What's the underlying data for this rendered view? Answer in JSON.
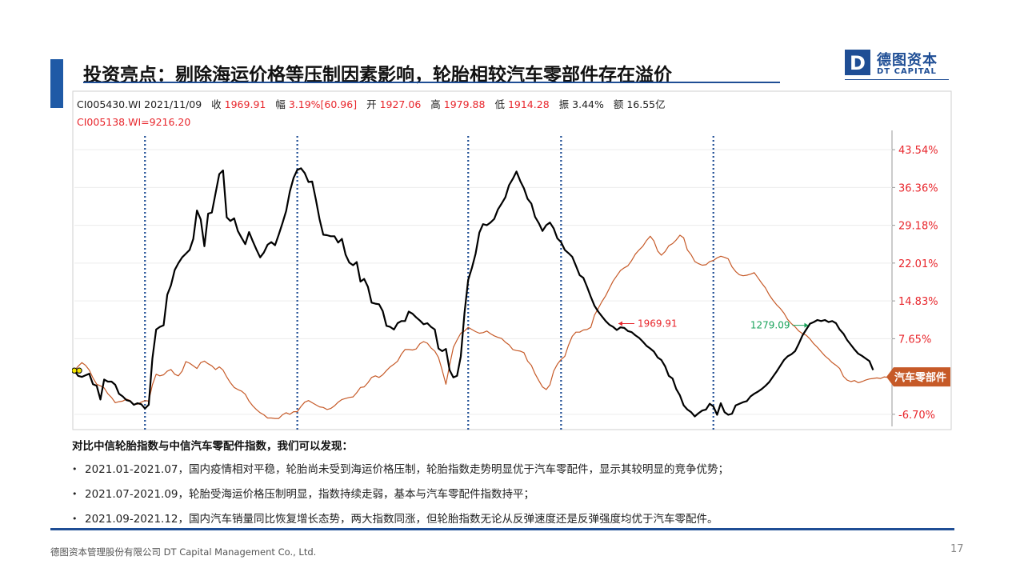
{
  "slide": {
    "title": "投资亮点：剔除海运价格等压制因素影响，轮胎相较汽车零部件存在溢价",
    "logo": {
      "cn": "德图资本",
      "en": "DT CAPITAL",
      "mark": "D"
    },
    "footer": {
      "company": "德图资本管理股份有限公司 DT Capital Management Co., Ltd.",
      "page": "17"
    },
    "accent_color": "#1f5aa6",
    "brand_color": "#1f4e95"
  },
  "infobar": {
    "code_date": "CI005430.WI 2021/11/09",
    "close_label": "收",
    "close_value": "1969.91",
    "change_label": "幅",
    "change_value": "3.19%[60.96]",
    "open_label": "开",
    "open_value": "1927.06",
    "high_label": "高",
    "high_value": "1979.88",
    "low_label": "低",
    "low_value": "1914.28",
    "amp_label": "振",
    "amp_value": "3.44%",
    "amount_label": "额",
    "amount_value": "16.55亿",
    "compare": "CI005138.WI=9216.20"
  },
  "findings": {
    "heading": "对比中信轮胎指数与中信汽车零配件指数，我们可以发现：",
    "bullets": [
      "2021.01-2021.07，国内疫情相对平稳，轮胎尚未受到海运价格压制，轮胎指数走势明显优于汽车零配件，显示其较明显的竞争优势；",
      "2021.07-2021.09，轮胎受海运价格压制明显，指数持续走弱，基本与汽车零配件指数持平；",
      "2021.09-2021.12，国内汽车销量同比恢复增长态势，两大指数同涨，但轮胎指数无论从反弹速度还是反弹强度均优于汽车零配件。"
    ]
  },
  "chart_data": {
    "type": "line",
    "y_axis": {
      "ticks": [
        "43.54%",
        "36.36%",
        "29.18%",
        "22.01%",
        "14.83%",
        "7.65%",
        "-6.70%"
      ],
      "tick_values": [
        43.54,
        36.36,
        29.18,
        22.01,
        14.83,
        7.65,
        -6.7
      ],
      "ylim": [
        -9.0,
        47.2
      ],
      "side": "right",
      "tick_color": "#e8262c"
    },
    "n_points": 220,
    "dotted_separator_indices": [
      19,
      60,
      106,
      131,
      172
    ],
    "annotations": {
      "high_label": "1969.91",
      "high_index": 146,
      "low_label": "1279.09",
      "low_index": 198,
      "legend_tag": "汽车零部件"
    },
    "series": [
      {
        "color": "#000000",
        "values": [
          1.6,
          0.6,
          0.4,
          0.7,
          1.0,
          -1.0,
          -1.3,
          -3.9,
          -0.1,
          -0.5,
          -0.5,
          -1.1,
          -2.8,
          -3.3,
          -4.0,
          -4.2,
          -4.9,
          -4.6,
          -4.8,
          -5.6,
          -4.9,
          3.9,
          9.4,
          9.9,
          10.2,
          16.0,
          17.8,
          20.7,
          22.0,
          23.1,
          23.8,
          24.5,
          26.6,
          32.0,
          30.3,
          25.2,
          31.4,
          31.6,
          35.3,
          38.9,
          39.6,
          30.7,
          30.0,
          30.5,
          28.1,
          26.8,
          25.6,
          27.9,
          26.2,
          24.6,
          23.1,
          24.0,
          25.5,
          26.0,
          25.4,
          27.4,
          29.6,
          31.9,
          35.6,
          38.2,
          39.7,
          40.0,
          39.1,
          37.4,
          37.5,
          34.1,
          30.3,
          27.4,
          27.3,
          27.1,
          27.1,
          25.9,
          26.6,
          23.6,
          22.1,
          21.6,
          22.2,
          18.5,
          19.0,
          17.5,
          14.5,
          14.3,
          14.2,
          12.9,
          10.1,
          9.9,
          9.4,
          10.6,
          11.0,
          11.0,
          12.8,
          12.4,
          11.7,
          11.1,
          10.4,
          10.6,
          9.9,
          9.4,
          5.8,
          5.3,
          5.7,
          1.7,
          0.3,
          0.6,
          4.3,
          12.5,
          18.8,
          21.1,
          23.8,
          27.8,
          29.4,
          29.2,
          29.7,
          30.4,
          32.2,
          33.3,
          34.5,
          36.8,
          38.0,
          39.4,
          37.6,
          36.2,
          34.2,
          33.3,
          30.8,
          29.6,
          28.1,
          29.2,
          29.7,
          28.6,
          26.7,
          26.0,
          24.5,
          23.9,
          23.2,
          21.5,
          19.7,
          19.2,
          17.5,
          15.6,
          13.9,
          12.8,
          11.9,
          11.0,
          10.3,
          9.9,
          9.3,
          9.8,
          9.7,
          9.1,
          8.9,
          8.3,
          7.8,
          7.1,
          6.3,
          5.8,
          5.2,
          4.1,
          3.6,
          2.4,
          0.6,
          0.1,
          -1.9,
          -3.1,
          -5.0,
          -5.8,
          -6.3,
          -7.1,
          -6.5,
          -6.0,
          -5.8,
          -4.7,
          -5.2,
          -6.8,
          -4.6,
          -6.3,
          -6.8,
          -6.6,
          -5.0,
          -4.7,
          -4.4,
          -4.2,
          -3.3,
          -2.8,
          -2.4,
          -1.9,
          -1.3,
          -0.6,
          0.4,
          1.4,
          2.5,
          3.6,
          4.3,
          4.7,
          5.3,
          6.7,
          8.3,
          9.4,
          10.5,
          10.8,
          11.2,
          11.0,
          11.2,
          10.8,
          11.0,
          10.6,
          9.4,
          8.6,
          7.4,
          6.5,
          5.6,
          4.8,
          4.4,
          3.9,
          3.4,
          1.7
        ]
      },
      {
        "color": "#c65a28",
        "values": [
          1.6,
          2.4,
          3.1,
          2.6,
          1.7,
          0.2,
          -1.0,
          -1.3,
          -1.7,
          -2.8,
          -3.5,
          -4.5,
          -4.3,
          -4.2,
          -3.8,
          -4.1,
          -4.8,
          -4.8,
          -4.4,
          -4.1,
          -4.2,
          -1.1,
          0.9,
          0.6,
          0.8,
          1.5,
          1.8,
          0.9,
          0.6,
          1.5,
          3.3,
          3.0,
          2.5,
          2.0,
          3.1,
          3.4,
          2.9,
          2.5,
          1.8,
          2.3,
          1.7,
          0.4,
          -0.7,
          -1.6,
          -2.0,
          -2.3,
          -2.9,
          -4.2,
          -5.1,
          -5.8,
          -6.4,
          -6.8,
          -7.4,
          -7.4,
          -7.5,
          -7.5,
          -6.8,
          -6.4,
          -6.7,
          -6.2,
          -6.2,
          -5.2,
          -4.4,
          -4.1,
          -4.5,
          -4.9,
          -5.3,
          -5.4,
          -5.8,
          -5.6,
          -5.1,
          -4.4,
          -3.9,
          -3.7,
          -3.5,
          -3.4,
          -2.6,
          -1.6,
          -1.5,
          -0.7,
          0.3,
          0.6,
          0.3,
          0.8,
          1.6,
          2.3,
          2.8,
          3.4,
          4.7,
          5.6,
          5.6,
          5.5,
          5.7,
          6.7,
          7.1,
          6.8,
          5.9,
          5.3,
          4.1,
          1.7,
          -1.0,
          2.6,
          6.0,
          7.4,
          8.7,
          9.1,
          9.8,
          9.4,
          9.0,
          8.7,
          8.8,
          9.1,
          8.6,
          8.2,
          7.9,
          7.7,
          7.0,
          6.5,
          5.6,
          5.4,
          5.3,
          5.0,
          3.4,
          2.6,
          1.0,
          -0.3,
          -1.5,
          -2.0,
          -1.1,
          1.5,
          2.8,
          3.7,
          4.3,
          6.4,
          8.1,
          8.9,
          8.9,
          9.3,
          9.4,
          9.8,
          12.1,
          13.4,
          14.7,
          15.8,
          17.2,
          18.6,
          19.6,
          20.6,
          21.1,
          21.5,
          22.5,
          23.7,
          24.5,
          25.2,
          26.3,
          27.1,
          26.2,
          24.3,
          23.5,
          24.2,
          25.3,
          25.7,
          26.4,
          27.3,
          26.8,
          24.5,
          23.6,
          22.3,
          21.9,
          21.6,
          21.7,
          22.3,
          22.5,
          23.0,
          23.3,
          23.1,
          22.8,
          21.3,
          20.4,
          19.8,
          19.6,
          19.7,
          19.9,
          20.2,
          19.2,
          18.2,
          17.3,
          16.0,
          15.0,
          14.1,
          13.4,
          12.5,
          11.3,
          10.5,
          9.9,
          9.1,
          8.6,
          8.3,
          7.6,
          6.7,
          6.0,
          5.2,
          4.4,
          3.8,
          3.1,
          2.6,
          2.0,
          0.5,
          -0.2,
          -0.5,
          -0.3,
          -0.7,
          -0.5,
          -0.2,
          0.0,
          0.1,
          0.2,
          0.1,
          0.4,
          0.3,
          0.4,
          0.4,
          0.2,
          0.1,
          0.1,
          0.4
        ]
      }
    ]
  }
}
